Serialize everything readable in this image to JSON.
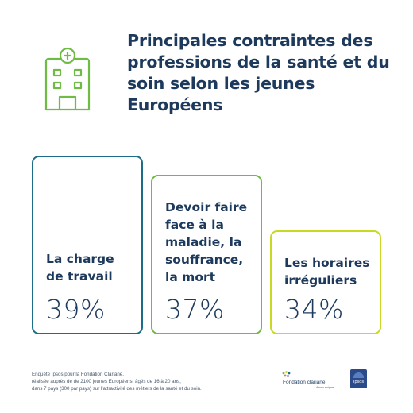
{
  "title": "Principales contraintes des professions de la santé et du soin selon les jeunes Européens",
  "chart_data": {
    "type": "bar",
    "title": "Principales contraintes des professions de la santé et du soin selon les jeunes Européens",
    "categories": [
      "La charge\nde travail",
      "Devoir faire\nface à la\nmaladie, la\nsouffrance,\nla mort",
      "Les horaires\nirréguliers"
    ],
    "values": [
      39,
      37,
      34
    ],
    "value_labels": [
      "39%",
      "37%",
      "34%"
    ],
    "colors": [
      "#1b6d8a",
      "#6fbc45",
      "#c9d923"
    ]
  },
  "footer": {
    "note": "Enquête Ipsos pour la Fondation Clariane,\nréalisée auprès de de 2100 jeunes Européens, âgés de 16 à 20 ans,\ndans 7 pays (300 par pays) sur l'attractivité des métiers de la santé et du soin."
  },
  "logos": {
    "clariane": "Fondation clariane",
    "clariane_tagline": "Aimer soigner",
    "ipsos": "Ipsos"
  },
  "colors": {
    "text": "#1d3a5c",
    "icon": "#6fbc45"
  }
}
